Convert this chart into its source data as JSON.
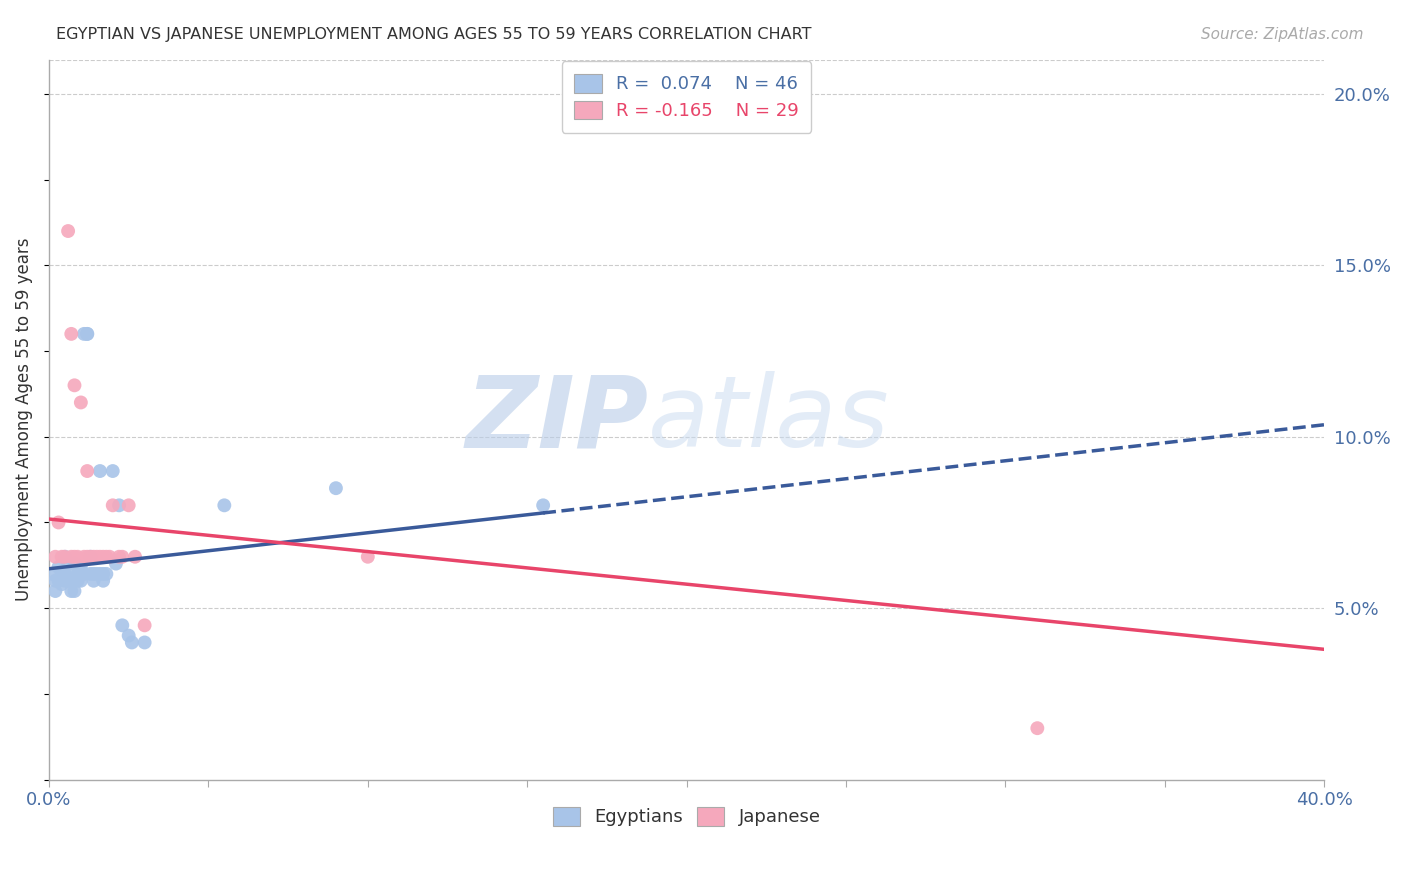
{
  "title": "EGYPTIAN VS JAPANESE UNEMPLOYMENT AMONG AGES 55 TO 59 YEARS CORRELATION CHART",
  "source": "Source: ZipAtlas.com",
  "ylabel": "Unemployment Among Ages 55 to 59 years",
  "xlim": [
    0.0,
    0.4
  ],
  "ylim": [
    0.0,
    0.21
  ],
  "xticks": [
    0.0,
    0.05,
    0.1,
    0.15,
    0.2,
    0.25,
    0.3,
    0.35,
    0.4
  ],
  "yticks_right": [
    0.05,
    0.1,
    0.15,
    0.2
  ],
  "ytick_right_labels": [
    "5.0%",
    "10.0%",
    "15.0%",
    "20.0%"
  ],
  "legend_r1": "R =  0.074",
  "legend_n1": "N = 46",
  "legend_r2": "R = -0.165",
  "legend_n2": "N = 29",
  "watermark_zip": "ZIP",
  "watermark_atlas": "atlas",
  "egyptian_color": "#a8c4e8",
  "japanese_color": "#f5a8bc",
  "egyptian_trend_color": "#3a5a9a",
  "japanese_trend_color": "#e8456a",
  "background_color": "#ffffff",
  "grid_color": "#cccccc",
  "axis_label_color": "#4a6fa5",
  "egyptians_x": [
    0.001,
    0.002,
    0.002,
    0.003,
    0.003,
    0.004,
    0.004,
    0.005,
    0.005,
    0.005,
    0.006,
    0.006,
    0.007,
    0.007,
    0.007,
    0.008,
    0.008,
    0.008,
    0.009,
    0.009,
    0.01,
    0.01,
    0.011,
    0.011,
    0.012,
    0.012,
    0.013,
    0.013,
    0.014,
    0.014,
    0.015,
    0.016,
    0.016,
    0.017,
    0.017,
    0.018,
    0.02,
    0.021,
    0.022,
    0.023,
    0.025,
    0.026,
    0.03,
    0.055,
    0.09,
    0.155
  ],
  "egyptians_y": [
    0.06,
    0.058,
    0.055,
    0.062,
    0.058,
    0.06,
    0.057,
    0.065,
    0.06,
    0.058,
    0.063,
    0.058,
    0.06,
    0.055,
    0.058,
    0.063,
    0.058,
    0.055,
    0.06,
    0.058,
    0.062,
    0.058,
    0.06,
    0.13,
    0.13,
    0.13,
    0.065,
    0.06,
    0.06,
    0.058,
    0.06,
    0.09,
    0.06,
    0.06,
    0.058,
    0.06,
    0.09,
    0.063,
    0.08,
    0.045,
    0.042,
    0.04,
    0.04,
    0.08,
    0.085,
    0.08
  ],
  "japanese_x": [
    0.002,
    0.003,
    0.004,
    0.005,
    0.006,
    0.007,
    0.007,
    0.008,
    0.008,
    0.009,
    0.01,
    0.011,
    0.012,
    0.012,
    0.013,
    0.014,
    0.015,
    0.016,
    0.017,
    0.018,
    0.019,
    0.02,
    0.022,
    0.023,
    0.025,
    0.027,
    0.03,
    0.1,
    0.31
  ],
  "japanese_y": [
    0.065,
    0.075,
    0.065,
    0.065,
    0.16,
    0.13,
    0.065,
    0.115,
    0.065,
    0.065,
    0.11,
    0.065,
    0.09,
    0.065,
    0.065,
    0.065,
    0.065,
    0.065,
    0.065,
    0.065,
    0.065,
    0.08,
    0.065,
    0.065,
    0.08,
    0.065,
    0.045,
    0.065,
    0.015
  ],
  "eg_trend_x_solid_end": 0.155,
  "eg_trend_x_dash_start": 0.155,
  "eg_trend_intercept": 0.0615,
  "eg_trend_slope": 0.105,
  "jp_trend_intercept": 0.076,
  "jp_trend_slope": -0.095
}
